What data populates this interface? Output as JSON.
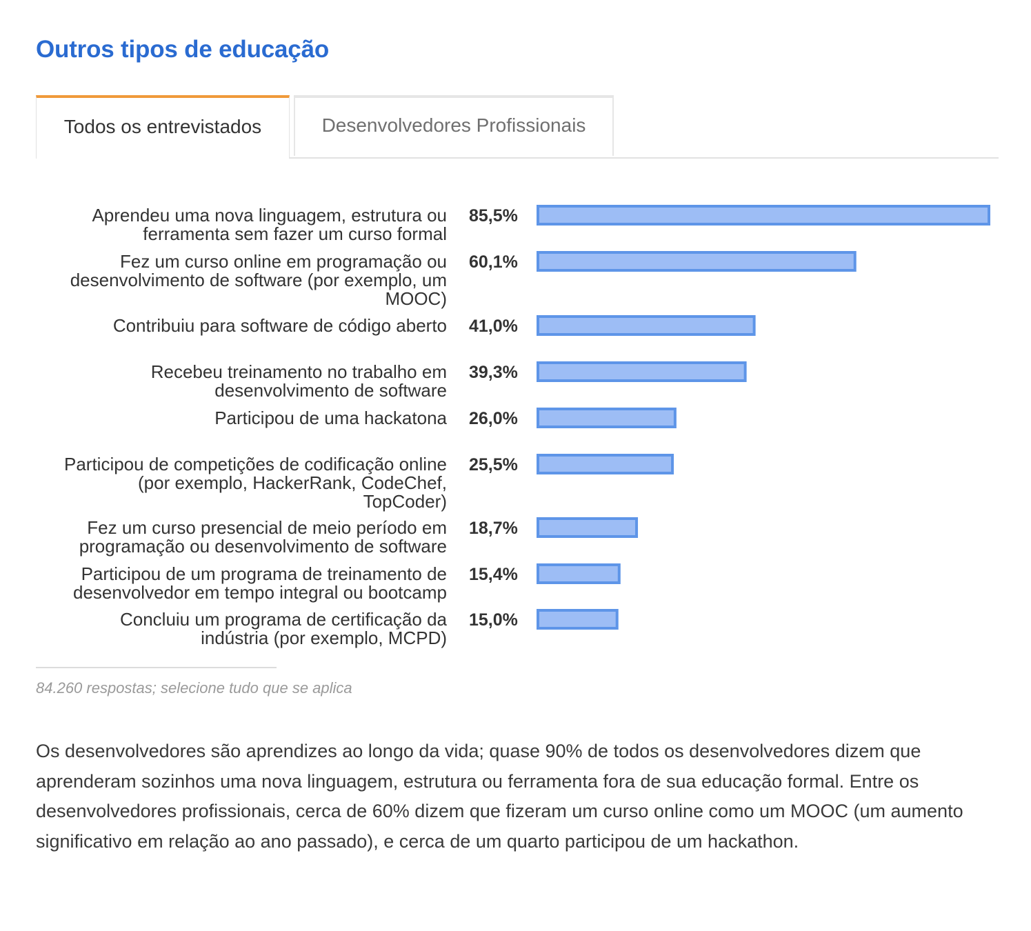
{
  "title": "Outros tipos de educação",
  "tabs": [
    {
      "label": "Todos os entrevistados",
      "active": true
    },
    {
      "label": "Desenvolvedores Profissionais",
      "active": false
    }
  ],
  "chart_data": {
    "type": "bar",
    "orientation": "horizontal",
    "categories": [
      "Aprendeu uma nova linguagem, estrutura ou ferramenta sem fazer um curso formal",
      "Fez um curso online em programação ou desenvolvimento de software (por exemplo, um MOOC)",
      "Contribuiu para software de código aberto",
      "Recebeu treinamento no trabalho em desenvolvimento de software",
      "Participou de uma hackatona",
      "Participou de competições de codificação online (por exemplo, HackerRank, CodeChef, TopCoder)",
      "Fez um curso presencial de meio período em programação ou desenvolvimento de software",
      "Participou de um programa de treinamento de desenvolvedor em tempo integral ou bootcamp",
      "Concluiu um programa de certificação da indústria (por exemplo, MCPD)"
    ],
    "label_lines": [
      [
        "Aprendeu uma nova linguagem, estrutura ou",
        "ferramenta sem fazer um curso formal"
      ],
      [
        "Fez um curso online em programação ou",
        "desenvolvimento de software (por exemplo, um",
        "MOOC)"
      ],
      [
        "Contribuiu para software de código aberto"
      ],
      [
        "Recebeu treinamento no trabalho em",
        "desenvolvimento de software"
      ],
      [
        "Participou de uma hackatona"
      ],
      [
        "Participou de competições de codificação online",
        "(por exemplo, HackerRank, CodeChef,",
        "TopCoder)"
      ],
      [
        "Fez um curso presencial de meio período em",
        "programação ou desenvolvimento de software"
      ],
      [
        "Participou de um programa de treinamento de",
        "desenvolvedor em tempo integral ou bootcamp"
      ],
      [
        "Concluiu um programa de certificação da",
        "indústria (por exemplo, MCPD)"
      ]
    ],
    "values": [
      85.5,
      60.1,
      41.0,
      39.3,
      26.0,
      25.5,
      18.7,
      15.4,
      15.0
    ],
    "value_labels": [
      "85,5%",
      "60,1%",
      "41,0%",
      "39,3%",
      "26,0%",
      "25,5%",
      "18,7%",
      "15,4%",
      "15,0%"
    ],
    "xlim": [
      0,
      85.5
    ],
    "unit": "%",
    "bar_color": "#9dbdf5",
    "bar_border_color": "#5e95e8",
    "grid": false
  },
  "footnote": "84.260 respostas; selecione tudo que se aplica",
  "summary": "Os desenvolvedores são aprendizes ao longo da vida; quase 90% de todos os desenvolvedores dizem que aprenderam sozinhos uma nova linguagem, estrutura ou ferramenta fora de sua educação formal. Entre os desenvolvedores profissionais, cerca de 60% dizem que fizeram um curso online como um MOOC (um aumento significativo em relação ao ano passado), e cerca de um quarto participou de um hackathon.",
  "colors": {
    "title": "#2a6bd1",
    "active_tab_accent": "#f09a3a",
    "text": "#333333",
    "muted": "#9a9a9a"
  }
}
